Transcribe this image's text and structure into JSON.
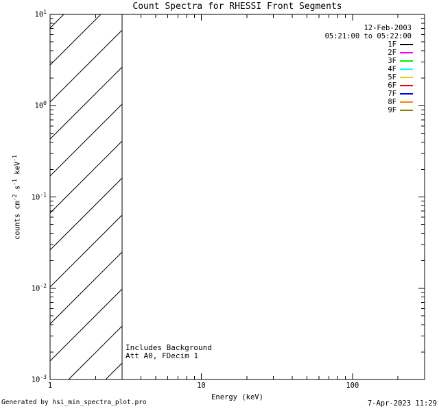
{
  "title": "Count Spectra for RHESSI Front Segments",
  "header_info": {
    "date": "12-Feb-2003",
    "time_range": "05:21:00 to 05:22:00"
  },
  "annotations": {
    "line1": "Includes Background",
    "line2": "Att A0, FDecim 1"
  },
  "footer": {
    "generated_by": "Generated by hsi_min_spectra_plot.pro",
    "timestamp": "7-Apr-2023 11:29"
  },
  "axes": {
    "xlabel": "Energy (keV)",
    "ylabel_parts": [
      "counts cm",
      "-2",
      " s",
      "-1",
      " keV",
      "-1"
    ]
  },
  "chart_data": {
    "type": "line",
    "title": "Count Spectra for RHESSI Front Segments",
    "xlabel": "Energy (keV)",
    "ylabel": "counts cm^-2 s^-1 keV^-1",
    "xscale": "log",
    "yscale": "log",
    "xlim": [
      1,
      300
    ],
    "ylim": [
      0.001,
      10
    ],
    "x_major_ticks": [
      1,
      10,
      100
    ],
    "y_major_ticks": [
      0.001,
      0.01,
      0.1,
      1,
      10
    ],
    "grid": false,
    "legend_position": "top-right",
    "hatched_region": {
      "x_start": 1,
      "x_end": 3
    },
    "series": [
      {
        "name": "1F",
        "color": "#000000",
        "values": []
      },
      {
        "name": "2F",
        "color": "#ff00ff",
        "values": []
      },
      {
        "name": "3F",
        "color": "#00ee00",
        "values": []
      },
      {
        "name": "4F",
        "color": "#00ffff",
        "values": []
      },
      {
        "name": "5F",
        "color": "#d8d800",
        "values": []
      },
      {
        "name": "6F",
        "color": "#ff0000",
        "values": []
      },
      {
        "name": "7F",
        "color": "#0000ff",
        "values": []
      },
      {
        "name": "8F",
        "color": "#ff8000",
        "values": []
      },
      {
        "name": "9F",
        "color": "#8c8000",
        "values": []
      }
    ]
  }
}
